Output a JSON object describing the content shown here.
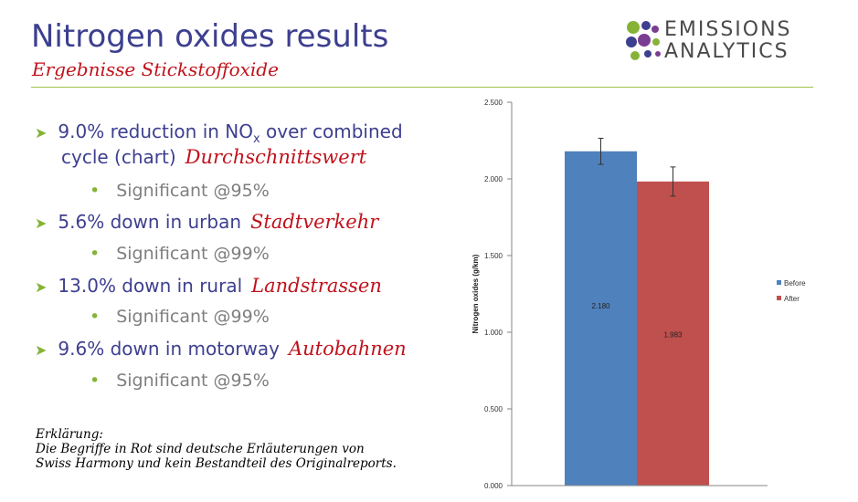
{
  "slide": {
    "title": "Nitrogen oxides results",
    "subtitle": "Ergebnisse Stickstoffoxide"
  },
  "logo": {
    "line1": "EMISSIONS",
    "line2": "ANALYTICS",
    "colors": [
      "#86b336",
      "#3d3f8f",
      "#7a3d91"
    ]
  },
  "bullets": [
    {
      "text_before": "9.0% reduction in NO",
      "subscript": "x",
      "text_after": " over combined",
      "line2": "cycle (chart)",
      "german": "Durchschnittswert",
      "sub": "Significant @95%"
    },
    {
      "text": "5.6% down in urban",
      "german": "Stadtverkehr",
      "sub": "Significant @99%"
    },
    {
      "text": "13.0% down in rural",
      "german": "Landstrassen",
      "sub": "Significant @99%"
    },
    {
      "text": "9.6% down in motorway",
      "german": "Autobahnen",
      "sub": "Significant @95%"
    }
  ],
  "note": {
    "heading": "Erklärung:",
    "line1": "Die Begriffe in Rot sind deutsche Erläuterungen von",
    "line2": "Swiss Harmony und kein Bestandteil des Originalreports."
  },
  "chart_data": {
    "type": "bar",
    "categories": [
      ""
    ],
    "series": [
      {
        "name": "Before",
        "values": [
          2.18
        ],
        "error": [
          0.085
        ],
        "label": "2.180",
        "color": "#4f81bd"
      },
      {
        "name": "After",
        "values": [
          1.983
        ],
        "error": [
          0.095
        ],
        "label": "1.983",
        "color": "#c0504d"
      }
    ],
    "ylabel": "Nitrogen oxides (g/km)",
    "ylim": [
      0,
      2.5
    ],
    "yticks": [
      "0.000",
      "0.500",
      "1.000",
      "1.500",
      "2.000",
      "2.500"
    ],
    "legend": "right",
    "grid": false
  }
}
